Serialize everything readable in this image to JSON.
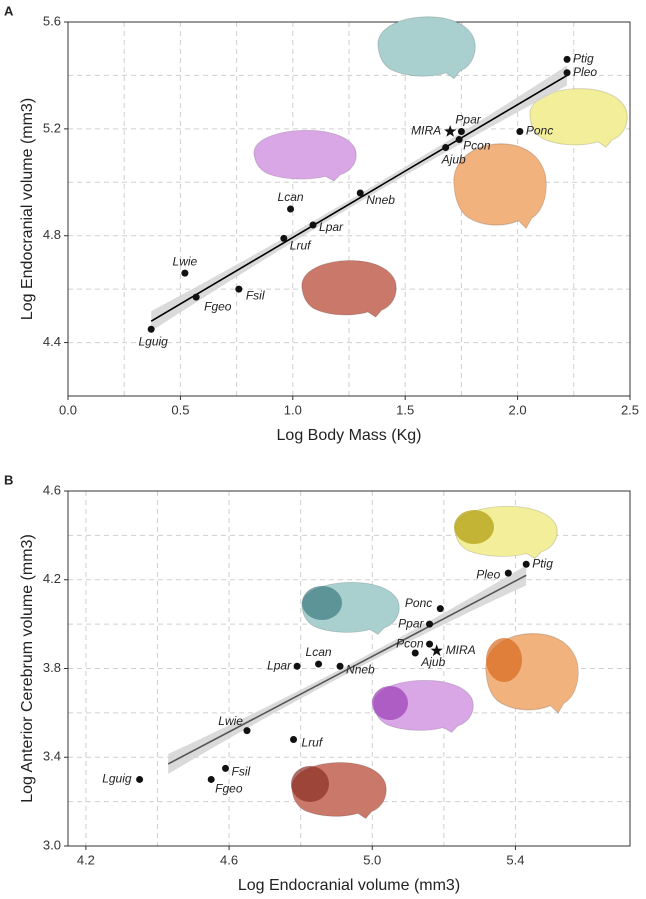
{
  "chart_data": [
    {
      "type": "scatter",
      "panel": "A",
      "x_label": "Log Body Mass (Kg)",
      "y_label": "Log Endocranial volume (mm3)",
      "xlim": [
        0,
        2.5
      ],
      "ylim": [
        4.2,
        5.6
      ],
      "xticks": [
        {
          "value": 0,
          "label": "0.0"
        },
        0.5,
        {
          "value": 1,
          "label": "1.0"
        },
        1.5,
        {
          "value": 2,
          "label": "2.0"
        },
        2.5
      ],
      "yticks": [
        4.4,
        4.8,
        5.2,
        5.6
      ],
      "grid": true,
      "color": "#111",
      "point_labels": [
        "Lguig",
        "Lwie",
        "Fgeo",
        "Fsil",
        "Lruf",
        "Lcan",
        "Lpar",
        "Nneb",
        "MIRA",
        "Ppar",
        "Pcon",
        "Ajub",
        "Ponc",
        "Ptig",
        "Pleo"
      ],
      "markers": [
        "circle",
        "circle",
        "circle",
        "circle",
        "circle",
        "circle",
        "circle",
        "circle",
        "star",
        "circle",
        "circle",
        "circle",
        "circle",
        "circle",
        "circle"
      ],
      "x": [
        0.37,
        0.52,
        0.57,
        0.76,
        0.96,
        0.99,
        1.09,
        1.3,
        1.7,
        1.75,
        1.74,
        1.68,
        2.01,
        2.22,
        2.22
      ],
      "values": [
        4.45,
        4.66,
        4.57,
        4.6,
        4.79,
        4.9,
        4.84,
        4.96,
        5.19,
        5.19,
        5.16,
        5.13,
        5.19,
        5.46,
        5.41
      ],
      "fit": {
        "x": [
          0.37,
          2.22
        ],
        "values": [
          4.48,
          5.4
        ],
        "color": "#000"
      }
    },
    {
      "type": "scatter",
      "panel": "B",
      "x_label": "Log Endocranial volume (mm3)",
      "y_label": "Log Anterior Cerebrum volume (mm3)",
      "xlim": [
        4.15,
        5.72
      ],
      "ylim": [
        3.0,
        4.6
      ],
      "xticks": [
        4.2,
        4.6,
        {
          "value": 5,
          "label": "5.0"
        },
        5.4
      ],
      "yticks": [
        {
          "value": 3,
          "label": "3.0"
        },
        3.4,
        3.8,
        4.2,
        4.6
      ],
      "grid": true,
      "color": "#111",
      "point_labels": [
        "Lguig",
        "Lwie",
        "Fgeo",
        "Fsil",
        "Lruf",
        "Lcan",
        "Lpar",
        "Nneb",
        "MIRA",
        "Ppar",
        "Pcon",
        "Ajub",
        "Ponc",
        "Ptig",
        "Pleo"
      ],
      "markers": [
        "circle",
        "circle",
        "circle",
        "circle",
        "circle",
        "circle",
        "circle",
        "circle",
        "star",
        "circle",
        "circle",
        "circle",
        "circle",
        "circle",
        "circle"
      ],
      "x": [
        4.35,
        4.65,
        4.55,
        4.59,
        4.78,
        4.85,
        4.79,
        4.91,
        5.18,
        5.16,
        5.16,
        5.12,
        5.19,
        5.43,
        5.38
      ],
      "values": [
        3.3,
        3.52,
        3.3,
        3.35,
        3.48,
        3.82,
        3.81,
        3.81,
        3.88,
        4.0,
        3.91,
        3.87,
        4.07,
        4.27,
        4.23
      ],
      "fit": {
        "x": [
          4.43,
          5.43
        ],
        "values": [
          3.37,
          4.22
        ],
        "color": "#555"
      }
    }
  ]
}
